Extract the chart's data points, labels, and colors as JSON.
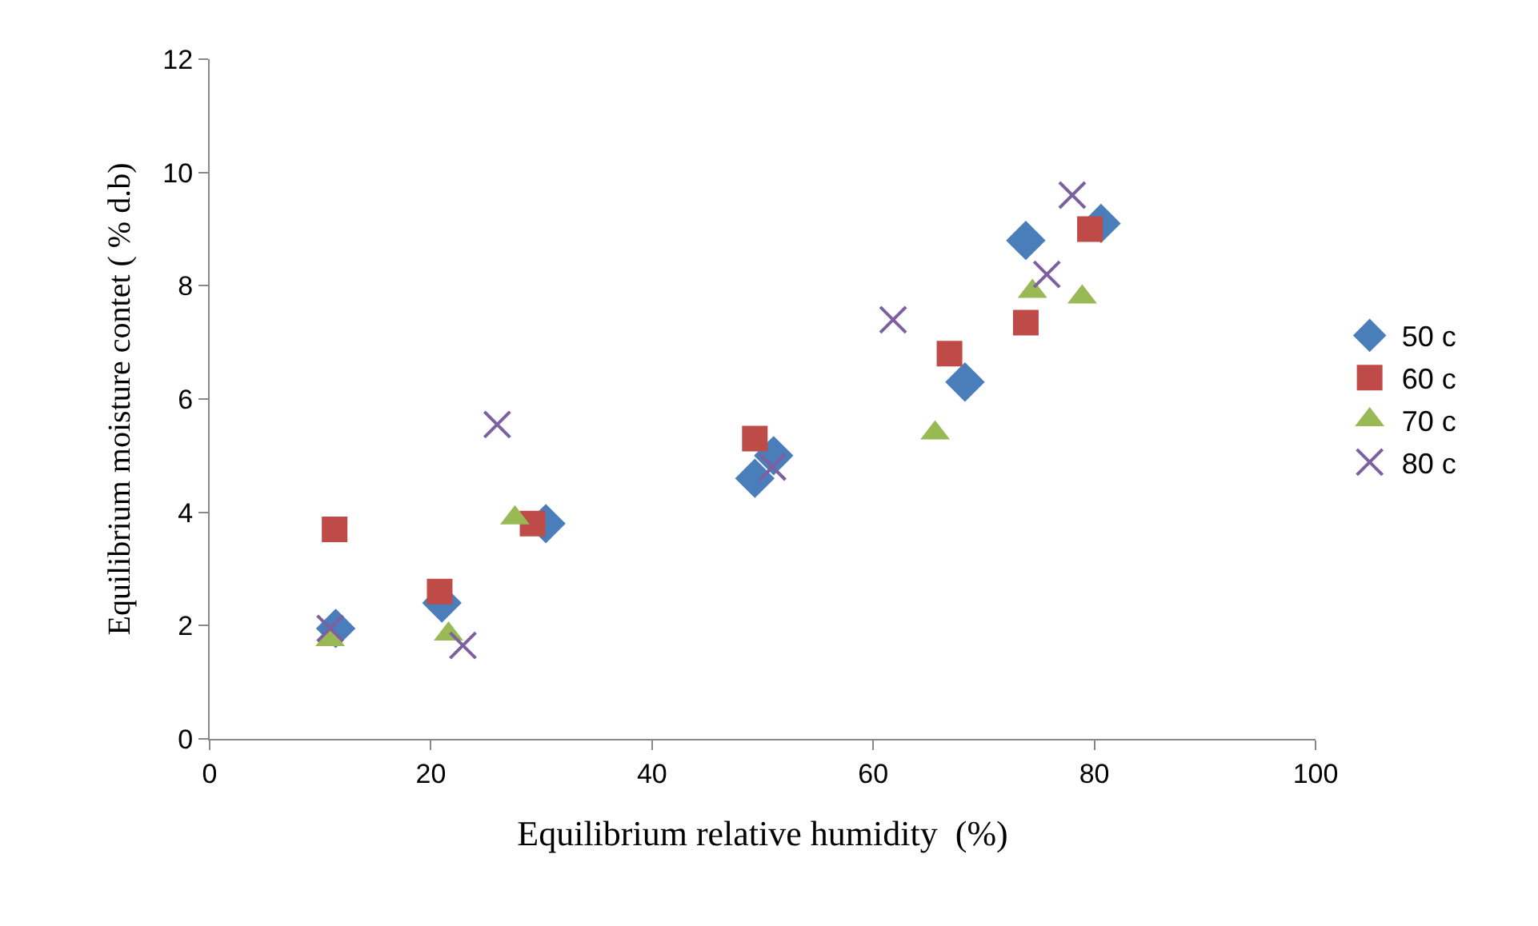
{
  "chart_data": {
    "type": "scatter",
    "xlabel": "Equilibrium relative humidity  (%)",
    "ylabel": "Equilibrium moisture contet ( % d.b)",
    "xlim": [
      0,
      100
    ],
    "xticks": [
      0,
      20,
      40,
      60,
      80,
      100
    ],
    "ylim": [
      0,
      12
    ],
    "yticks": [
      0,
      2,
      4,
      6,
      8,
      10,
      12
    ],
    "grid": false,
    "legend": "right",
    "series": [
      {
        "name": "50 c",
        "color": "#4a7ebb",
        "marker": "diamond",
        "x": [
          11.4,
          21,
          30.4,
          49.3,
          51,
          68.3,
          73.8,
          80.6
        ],
        "values": [
          1.95,
          2.4,
          3.8,
          4.6,
          5.0,
          6.3,
          8.8,
          9.1
        ]
      },
      {
        "name": "60 c",
        "color": "#be4b48",
        "marker": "square",
        "x": [
          11.3,
          20.8,
          29.2,
          49.3,
          66.9,
          73.8,
          79.6
        ],
        "values": [
          3.7,
          2.6,
          3.8,
          5.3,
          6.8,
          7.35,
          9.0
        ]
      },
      {
        "name": "70 c",
        "color": "#98b954",
        "marker": "triangle",
        "x": [
          10.9,
          21.6,
          27.6,
          65.6,
          74.4,
          78.9
        ],
        "values": [
          1.75,
          1.85,
          3.9,
          5.4,
          7.9,
          7.8
        ]
      },
      {
        "name": "80 c",
        "color": "#7d60a0",
        "marker": "cross",
        "x": [
          10.9,
          22.9,
          26,
          50.9,
          61.8,
          75.7,
          78
        ],
        "values": [
          1.95,
          1.65,
          5.55,
          4.8,
          7.4,
          8.2,
          9.6
        ]
      }
    ]
  }
}
